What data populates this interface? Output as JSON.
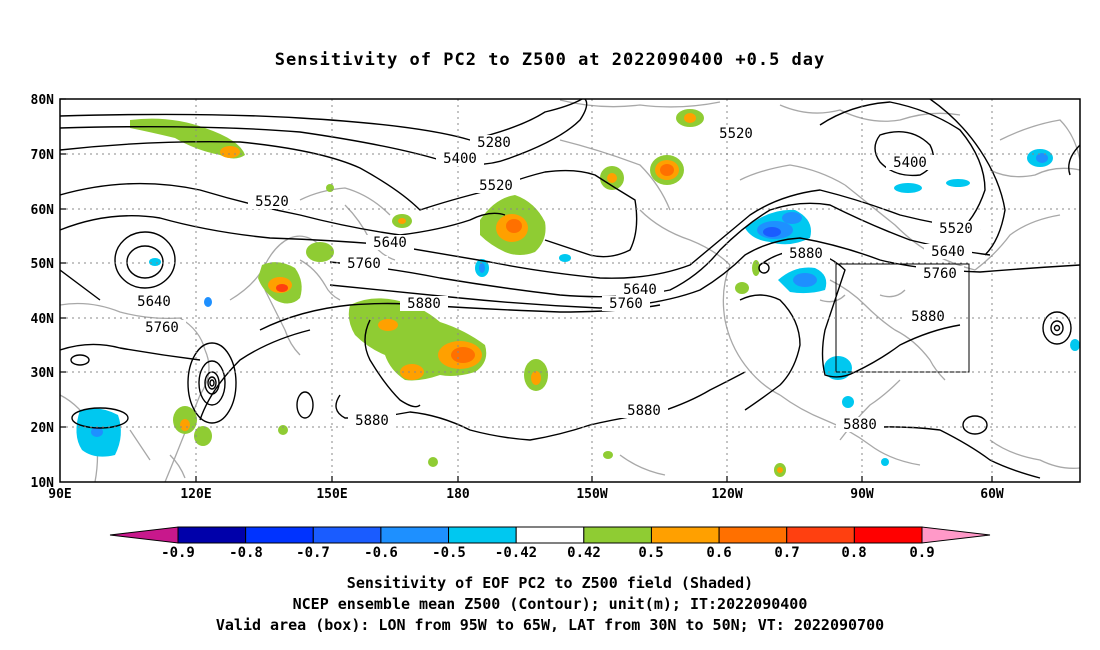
{
  "title": "Sensitivity of PC2 to Z500 at 2022090400 +0.5 day",
  "lat_labels": [
    "80N",
    "70N",
    "60N",
    "50N",
    "40N",
    "30N",
    "20N",
    "10N"
  ],
  "lon_labels": [
    "90E",
    "120E",
    "150E",
    "180",
    "150W",
    "120W",
    "90W",
    "60W"
  ],
  "contour_labels": {
    "c5280": "5280",
    "c5400a": "5400",
    "c5400b": "5400",
    "c5520a": "5520",
    "c5520b": "5520",
    "c5520c": "5520",
    "c5520d": "5520",
    "c5640a": "5640",
    "c5640b": "5640",
    "c5640c": "5640",
    "c5640d": "5640",
    "c5760a": "5760",
    "c5760b": "5760",
    "c5760c": "5760",
    "c5760d": "5760",
    "c5880a": "5880",
    "c5880b": "5880",
    "c5880c": "5880",
    "c5880d": "5880",
    "c5880e": "5880",
    "c5880f": "5880"
  },
  "colorbar": {
    "labels": [
      "-0.9",
      "-0.8",
      "-0.7",
      "-0.6",
      "-0.5",
      "-0.42",
      "0.42",
      "0.5",
      "0.6",
      "0.7",
      "0.8",
      "0.9"
    ],
    "colors": [
      "#0000aa",
      "#0033ff",
      "#1a5cff",
      "#1e90ff",
      "#00c8f0",
      "#ffffff",
      "#8fcc33",
      "#ffa000",
      "#ff7000",
      "#ff4010",
      "#ff0000"
    ],
    "below_color": "#c8188c",
    "above_color": "#ff99c8"
  },
  "captions": {
    "line1": "Sensitivity of EOF PC2 to Z500 field (Shaded)",
    "line2": "NCEP ensemble mean Z500 (Contour); unit(m); IT:2022090400",
    "line3": "Valid area (box): LON from 95W to 65W, LAT from 30N to 50N; VT: 2022090700"
  },
  "valid_box": {
    "lon_from": "95W",
    "lon_to": "65W",
    "lat_from": "30N",
    "lat_to": "50N"
  }
}
